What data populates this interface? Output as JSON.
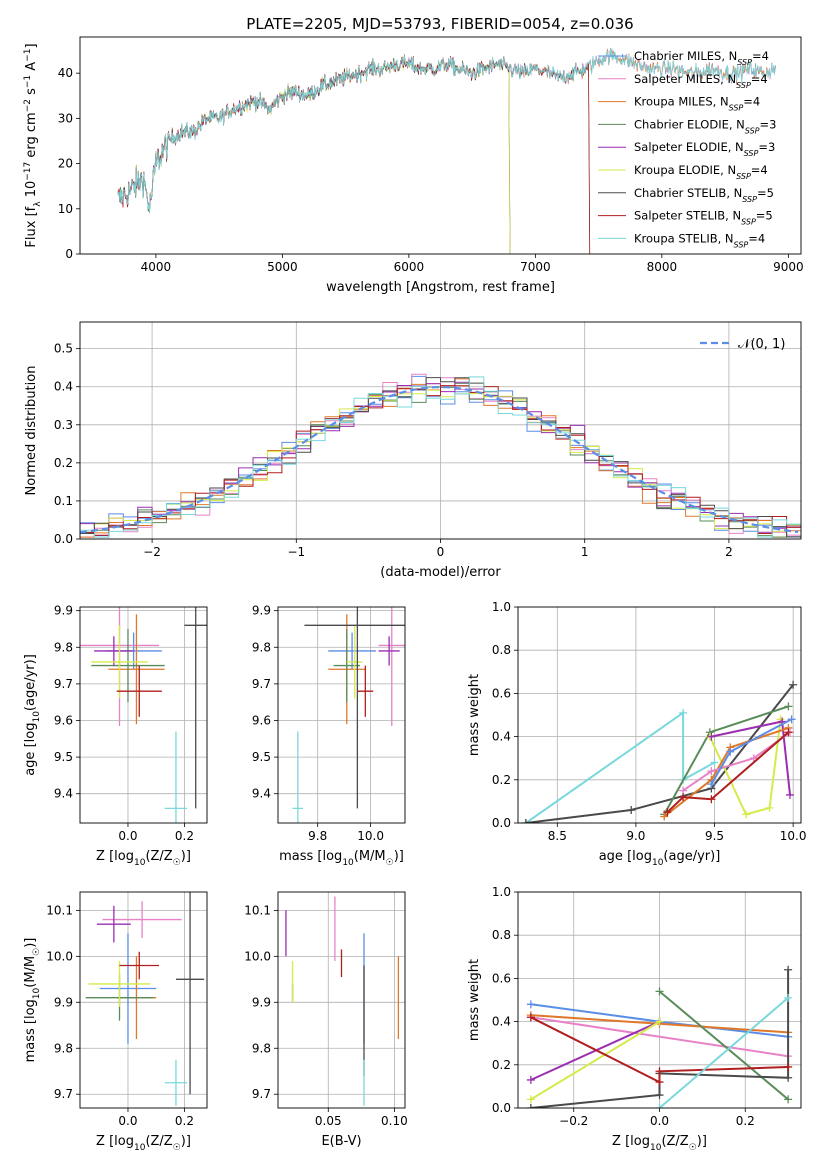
{
  "figure": {
    "title": "PLATE=2205, MJD=53793, FIBERID=0054, z=0.036"
  },
  "colors": {
    "Chabrier MILES": "#5b8ee6",
    "Salpeter MILES": "#e882c6",
    "Kroupa MILES": "#e0782a",
    "Chabrier ELODIE": "#5a8c5a",
    "Salpeter ELODIE": "#9a2fb0",
    "Kroupa ELODIE": "#d6ea4a",
    "Chabrier STELIB": "#4a4a4a",
    "Salpeter STELIB": "#b01e1e",
    "Kroupa STELIB": "#7ad8dc",
    "gaussian": "#5b8ee6",
    "grid": "#b0b0b0"
  },
  "chart_data": [
    {
      "id": "spectrum",
      "type": "line",
      "title": "PLATE=2205, MJD=53793, FIBERID=0054, z=0.036",
      "xlabel": "wavelength [Angstrom, rest frame]",
      "ylabel": "Flux [f_λ 10^-17 erg cm^-2 s^-1 A^-1]",
      "xlim": [
        3400,
        9100
      ],
      "ylim": [
        0,
        48
      ],
      "xticks": [
        4000,
        5000,
        6000,
        7000,
        8000,
        9000
      ],
      "yticks": [
        0,
        10,
        20,
        30,
        40
      ],
      "grid": false,
      "legend_position": "right",
      "anchors_x": [
        3700,
        3800,
        3900,
        3950,
        4000,
        4100,
        4200,
        4300,
        4400,
        4500,
        4600,
        4700,
        4800,
        4900,
        5000,
        5100,
        5200,
        5300,
        5400,
        5500,
        5600,
        5700,
        5800,
        5900,
        6000,
        6100,
        6200,
        6300,
        6400,
        6500,
        6600,
        6700,
        6800,
        6900,
        7000,
        7100,
        7200,
        7300,
        7400,
        7500,
        7600,
        7700,
        7800,
        7900,
        8000,
        8100,
        8200,
        8300,
        8400,
        8500,
        8600,
        8700,
        8800,
        8900
      ],
      "anchors_y": [
        12,
        14,
        17,
        10,
        20,
        25,
        27,
        27,
        30,
        30,
        32,
        33,
        34,
        32,
        35,
        36,
        35,
        37,
        38,
        39,
        40,
        41,
        41,
        42,
        42,
        41,
        41,
        42,
        41,
        40,
        41,
        42,
        41,
        40,
        41,
        40,
        39,
        40,
        41,
        43,
        44,
        43,
        42,
        41,
        41,
        41,
        40,
        40,
        41,
        40,
        40,
        41,
        40,
        41
      ],
      "series": [
        {
          "name": "Chabrier MILES, N_SSP=4",
          "color": "Chabrier MILES",
          "end_x": 8900
        },
        {
          "name": "Salpeter MILES, N_SSP=4",
          "color": "Salpeter MILES",
          "end_x": 8900
        },
        {
          "name": "Kroupa MILES, N_SSP=4",
          "color": "Kroupa MILES",
          "end_x": 8900
        },
        {
          "name": "Chabrier ELODIE, N_SSP=3",
          "color": "Chabrier ELODIE",
          "end_x": 6790
        },
        {
          "name": "Salpeter ELODIE, N_SSP=3",
          "color": "Salpeter ELODIE",
          "end_x": 6790
        },
        {
          "name": "Kroupa ELODIE, N_SSP=4",
          "color": "Kroupa ELODIE",
          "end_x": 6790
        },
        {
          "name": "Chabrier STELIB, N_SSP=5",
          "color": "Chabrier STELIB",
          "end_x": 7420
        },
        {
          "name": "Salpeter STELIB, N_SSP=5",
          "color": "Salpeter STELIB",
          "end_x": 7420
        },
        {
          "name": "Kroupa STELIB, N_SSP=4",
          "color": "Kroupa STELIB",
          "end_x": 8900
        }
      ]
    },
    {
      "id": "residuals",
      "type": "histogram",
      "xlabel": "(data-model)/error",
      "ylabel": "Normed distribution",
      "xlim": [
        -2.5,
        2.5
      ],
      "ylim": [
        0,
        0.57
      ],
      "xticks": [
        -2,
        -1,
        0,
        1,
        2
      ],
      "yticks": [
        0.0,
        0.1,
        0.2,
        0.3,
        0.4,
        0.5
      ],
      "grid": true,
      "legend": "𝒩(0, 1)",
      "legend_position": "top-right",
      "bin_width": 0.1,
      "gaussian": {
        "mean": 0,
        "sigma": 1
      },
      "series_colors": [
        "Chabrier MILES",
        "Salpeter MILES",
        "Kroupa MILES",
        "Chabrier ELODIE",
        "Salpeter ELODIE",
        "Kroupa ELODIE",
        "Chabrier STELIB",
        "Salpeter STELIB",
        "Kroupa STELIB"
      ]
    },
    {
      "id": "age_vs_Z",
      "type": "scatter",
      "xlabel": "Z [log10(Z/Z☉)]",
      "ylabel": "age [log10(age/yr)]",
      "xlim": [
        -0.17,
        0.28
      ],
      "ylim": [
        9.32,
        9.91
      ],
      "xticks": [
        0.0,
        0.2
      ],
      "yticks": [
        9.4,
        9.5,
        9.6,
        9.7,
        9.8,
        9.9
      ],
      "grid": true,
      "points": [
        {
          "color": "Chabrier MILES",
          "x": 0.02,
          "y": 9.79,
          "xerr": 0.1,
          "yerr": 0.05
        },
        {
          "color": "Salpeter MILES",
          "x": -0.03,
          "y": 9.805,
          "xerr": 0.14,
          "yerr": 0.22
        },
        {
          "color": "Kroupa MILES",
          "x": 0.03,
          "y": 9.74,
          "xerr": 0.1,
          "yerr": 0.15
        },
        {
          "color": "Chabrier ELODIE",
          "x": 0.0,
          "y": 9.75,
          "xerr": 0.13,
          "yerr": 0.1
        },
        {
          "color": "Salpeter ELODIE",
          "x": -0.05,
          "y": 9.79,
          "xerr": 0.07,
          "yerr": 0.04
        },
        {
          "color": "Kroupa ELODIE",
          "x": -0.03,
          "y": 9.76,
          "xerr": 0.1,
          "yerr": 0.1
        },
        {
          "color": "Chabrier STELIB",
          "x": 0.24,
          "y": 9.86,
          "xerr": 0.04,
          "yerr": 0.5
        },
        {
          "color": "Salpeter STELIB",
          "x": 0.04,
          "y": 9.68,
          "xerr": 0.08,
          "yerr": 0.07
        },
        {
          "color": "Kroupa STELIB",
          "x": 0.17,
          "y": 9.36,
          "xerr": 0.04,
          "yerr": 0.21
        }
      ]
    },
    {
      "id": "age_vs_mass",
      "type": "scatter",
      "xlabel": "mass [log10(M/M☉)]",
      "ylabel": "",
      "xlim": [
        9.65,
        10.13
      ],
      "ylim": [
        9.32,
        9.91
      ],
      "xticks": [
        9.8,
        10.0
      ],
      "yticks": [
        9.4,
        9.5,
        9.6,
        9.7,
        9.8,
        9.9
      ],
      "grid": true,
      "points": [
        {
          "color": "Chabrier MILES",
          "x": 9.93,
          "y": 9.79,
          "xerr": 0.09,
          "yerr": 0.05
        },
        {
          "color": "Salpeter MILES",
          "x": 10.08,
          "y": 9.805,
          "xerr": 0.05,
          "yerr": 0.22
        },
        {
          "color": "Kroupa MILES",
          "x": 9.91,
          "y": 9.74,
          "xerr": 0.07,
          "yerr": 0.15
        },
        {
          "color": "Chabrier ELODIE",
          "x": 9.91,
          "y": 9.75,
          "xerr": 0.05,
          "yerr": 0.1
        },
        {
          "color": "Salpeter ELODIE",
          "x": 10.07,
          "y": 9.79,
          "xerr": 0.04,
          "yerr": 0.04
        },
        {
          "color": "Kroupa ELODIE",
          "x": 9.94,
          "y": 9.76,
          "xerr": 0.03,
          "yerr": 0.1
        },
        {
          "color": "Chabrier STELIB",
          "x": 9.95,
          "y": 9.86,
          "xerr": 0.2,
          "yerr": 0.5
        },
        {
          "color": "Salpeter STELIB",
          "x": 9.98,
          "y": 9.68,
          "xerr": 0.03,
          "yerr": 0.07
        },
        {
          "color": "Kroupa STELIB",
          "x": 9.725,
          "y": 9.36,
          "xerr": 0.02,
          "yerr": 0.21
        }
      ]
    },
    {
      "id": "weight_vs_age",
      "type": "line",
      "xlabel": "age [log10(age/yr)]",
      "ylabel": "mass weight",
      "xlim": [
        8.25,
        10.05
      ],
      "ylim": [
        0,
        1.0
      ],
      "xticks": [
        8.5,
        9.0,
        9.5,
        10.0
      ],
      "yticks": [
        0.0,
        0.2,
        0.4,
        0.6,
        0.8,
        1.0
      ],
      "grid": true,
      "series": [
        {
          "color": "Kroupa STELIB",
          "x": [
            8.3,
            9.3,
            9.3,
            9.5
          ],
          "y": [
            0.0,
            0.51,
            0.2,
            0.28
          ]
        },
        {
          "color": "Chabrier STELIB",
          "x": [
            8.3,
            8.97,
            9.48,
            10.0
          ],
          "y": [
            0.0,
            0.06,
            0.16,
            0.64
          ]
        },
        {
          "color": "Chabrier ELODIE",
          "x": [
            9.18,
            9.47,
            9.97
          ],
          "y": [
            0.04,
            0.42,
            0.54
          ]
        },
        {
          "color": "Kroupa ELODIE",
          "x": [
            9.47,
            9.7,
            9.85,
            9.92
          ],
          "y": [
            0.4,
            0.04,
            0.07,
            0.48
          ]
        },
        {
          "color": "Salpeter ELODIE",
          "x": [
            9.48,
            9.93,
            9.98
          ],
          "y": [
            0.4,
            0.47,
            0.13
          ]
        },
        {
          "color": "Kroupa MILES",
          "x": [
            9.18,
            9.48,
            9.6,
            9.97
          ],
          "y": [
            0.03,
            0.2,
            0.35,
            0.44
          ]
        },
        {
          "color": "Salpeter MILES",
          "x": [
            9.3,
            9.48,
            9.75,
            9.98
          ],
          "y": [
            0.15,
            0.24,
            0.3,
            0.42
          ]
        },
        {
          "color": "Chabrier MILES",
          "x": [
            9.48,
            9.6,
            9.99
          ],
          "y": [
            0.18,
            0.33,
            0.48
          ]
        },
        {
          "color": "Salpeter STELIB",
          "x": [
            9.2,
            9.3,
            9.48,
            9.97
          ],
          "y": [
            0.05,
            0.12,
            0.11,
            0.42
          ]
        }
      ]
    },
    {
      "id": "mass_vs_Z",
      "type": "scatter",
      "xlabel": "Z [log10(Z/Z☉)]",
      "ylabel": "mass [log10(M/M☉)]",
      "xlim": [
        -0.17,
        0.28
      ],
      "ylim": [
        9.67,
        10.14
      ],
      "xticks": [
        0.0,
        0.2
      ],
      "yticks": [
        9.7,
        9.8,
        9.9,
        10.0,
        10.1
      ],
      "grid": true,
      "points": [
        {
          "color": "Chabrier MILES",
          "x": 0.0,
          "y": 9.93,
          "xerr": 0.1,
          "yerr": 0.12
        },
        {
          "color": "Salpeter MILES",
          "x": 0.05,
          "y": 10.08,
          "xerr": 0.14,
          "yerr": 0.04
        },
        {
          "color": "Kroupa MILES",
          "x": 0.03,
          "y": 9.91,
          "xerr": 0.07,
          "yerr": 0.09
        },
        {
          "color": "Chabrier ELODIE",
          "x": -0.03,
          "y": 9.91,
          "xerr": 0.12,
          "yerr": 0.05
        },
        {
          "color": "Salpeter ELODIE",
          "x": -0.05,
          "y": 10.07,
          "xerr": 0.06,
          "yerr": 0.04
        },
        {
          "color": "Kroupa ELODIE",
          "x": -0.03,
          "y": 9.94,
          "xerr": 0.11,
          "yerr": 0.05
        },
        {
          "color": "Chabrier STELIB",
          "x": 0.22,
          "y": 9.95,
          "xerr": 0.05,
          "yerr": 0.25
        },
        {
          "color": "Salpeter STELIB",
          "x": 0.04,
          "y": 9.98,
          "xerr": 0.07,
          "yerr": 0.03
        },
        {
          "color": "Kroupa STELIB",
          "x": 0.17,
          "y": 9.725,
          "xerr": 0.04,
          "yerr": 0.05
        }
      ]
    },
    {
      "id": "mass_vs_ebv",
      "type": "scatter",
      "xlabel": "E(B-V)",
      "ylabel": "",
      "xlim": [
        0.012,
        0.108
      ],
      "ylim": [
        9.67,
        10.14
      ],
      "xticks": [
        0.05,
        0.1
      ],
      "yticks": [
        9.7,
        9.8,
        9.9,
        10.0,
        10.1
      ],
      "grid": true,
      "points": [
        {
          "color": "Chabrier MILES",
          "x": 0.077,
          "y": 9.93,
          "xerr": 0.0,
          "yerr": 0.12
        },
        {
          "color": "Salpeter MILES",
          "x": 0.055,
          "y": 10.06,
          "xerr": 0.0,
          "yerr": 0.07
        },
        {
          "color": "Kroupa MILES",
          "x": 0.103,
          "y": 9.91,
          "xerr": 0.0,
          "yerr": 0.09
        },
        {
          "color": "Chabrier ELODIE",
          "x": 0.023,
          "y": 9.92,
          "xerr": 0.0,
          "yerr": 0.02
        },
        {
          "color": "Salpeter ELODIE",
          "x": 0.018,
          "y": 10.05,
          "xerr": 0.0,
          "yerr": 0.05
        },
        {
          "color": "Kroupa ELODIE",
          "x": 0.023,
          "y": 9.945,
          "xerr": 0.0,
          "yerr": 0.045
        },
        {
          "color": "Chabrier STELIB",
          "x": 0.077,
          "y": 9.86,
          "xerr": 0.0,
          "yerr": 0.12
        },
        {
          "color": "Salpeter STELIB",
          "x": 0.06,
          "y": 9.985,
          "xerr": 0.0,
          "yerr": 0.03
        },
        {
          "color": "Kroupa STELIB",
          "x": 0.077,
          "y": 9.725,
          "xerr": 0.0,
          "yerr": 0.05
        }
      ]
    },
    {
      "id": "weight_vs_Z",
      "type": "line",
      "xlabel": "Z [log10(Z/Z☉)]",
      "ylabel": "mass weight",
      "xlim": [
        -0.33,
        0.33
      ],
      "ylim": [
        0,
        1.0
      ],
      "xticks": [
        -0.2,
        0.0,
        0.2
      ],
      "yticks": [
        0.0,
        0.2,
        0.4,
        0.6,
        0.8,
        1.0
      ],
      "grid": true,
      "series": [
        {
          "color": "Chabrier MILES",
          "x": [
            -0.3,
            0.0,
            0.3
          ],
          "y": [
            0.48,
            0.4,
            0.33
          ]
        },
        {
          "color": "Kroupa MILES",
          "x": [
            -0.3,
            0.0,
            0.3
          ],
          "y": [
            0.43,
            0.39,
            0.35
          ]
        },
        {
          "color": "Salpeter MILES",
          "x": [
            -0.3,
            0.3
          ],
          "y": [
            0.42,
            0.24
          ]
        },
        {
          "color": "Salpeter ELODIE",
          "x": [
            -0.3,
            0.0
          ],
          "y": [
            0.13,
            0.4
          ]
        },
        {
          "color": "Kroupa ELODIE",
          "x": [
            -0.3,
            0.0
          ],
          "y": [
            0.04,
            0.4
          ]
        },
        {
          "color": "Chabrier ELODIE",
          "x": [
            0.0,
            0.3
          ],
          "y": [
            0.54,
            0.04
          ]
        },
        {
          "color": "Chabrier STELIB",
          "x": [
            -0.3,
            0.0,
            0.0,
            0.3,
            0.3
          ],
          "y": [
            0.0,
            0.06,
            0.16,
            0.14,
            0.64
          ]
        },
        {
          "color": "Salpeter STELIB",
          "x": [
            -0.3,
            0.0,
            0.0,
            0.3
          ],
          "y": [
            0.42,
            0.12,
            0.17,
            0.19
          ]
        },
        {
          "color": "Kroupa STELIB",
          "x": [
            0.0,
            0.3
          ],
          "y": [
            0.0,
            0.51
          ]
        }
      ]
    }
  ]
}
